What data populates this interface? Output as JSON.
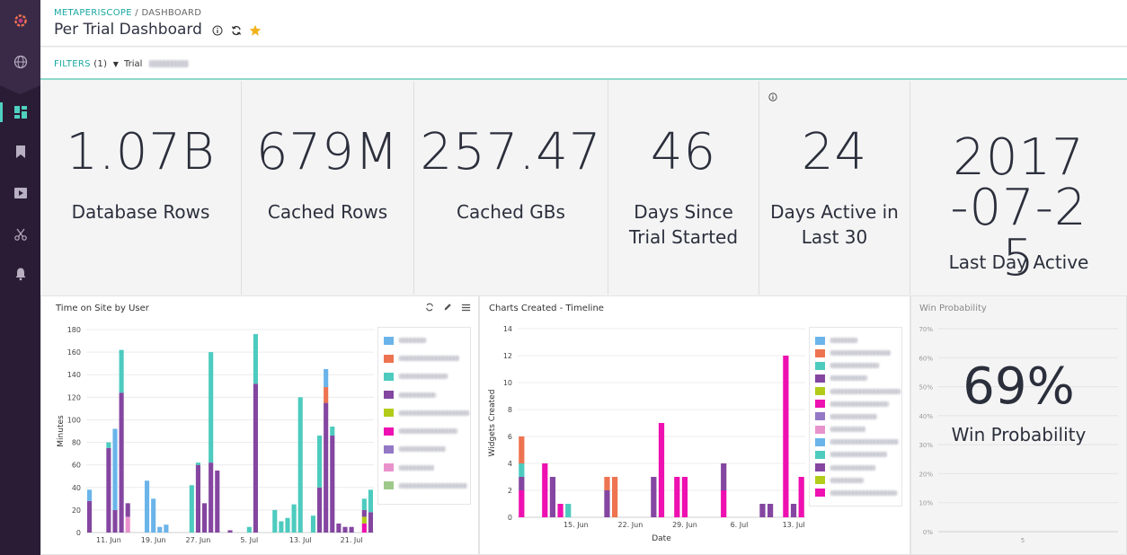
{
  "app": {
    "name": "Periscope Data",
    "logo": "periscope-logo"
  },
  "sidebar": {
    "items": [
      {
        "id": "globe",
        "icon": "globe-icon"
      },
      {
        "id": "dashboards",
        "icon": "dashboard-icon",
        "active": true
      },
      {
        "id": "bookmarks",
        "icon": "bookmark-icon"
      },
      {
        "id": "views",
        "icon": "view-icon"
      },
      {
        "id": "tools",
        "icon": "scissors-icon"
      },
      {
        "id": "alerts",
        "icon": "bell-icon"
      }
    ]
  },
  "header": {
    "breadcrumb_root": "METAPERISCOPE",
    "breadcrumb_sep": " / ",
    "breadcrumb_current": "DASHBOARD",
    "title": "Per Trial Dashboard",
    "icons": [
      "info-icon",
      "refresh-icon",
      "star-icon"
    ]
  },
  "filters": {
    "label": "FILTERS",
    "count": "(1)",
    "trial_label": "Trial"
  },
  "kpis": [
    {
      "value": "1.07B",
      "label": "Database Rows"
    },
    {
      "value": "679M",
      "label": "Cached Rows"
    },
    {
      "value": "257.47",
      "label": "Cached GBs"
    },
    {
      "value": "46",
      "label": "Days Since Trial Started"
    },
    {
      "value": "24",
      "label": "Days Active in Last 30"
    },
    {
      "value": "2017-07-25",
      "label": "Last Day Active"
    }
  ],
  "colors": {
    "blue": "#6ab4ea",
    "orange": "#ee7350",
    "teal": "#4dcbbf",
    "purple": "#8446a0",
    "lime": "#b3cc1a",
    "pink": "#ee10b0",
    "lavender": "#9378c6",
    "lightpink": "#e892cc",
    "sage": "#9fc98a",
    "accent": "#18a7a0"
  },
  "chart_data": [
    {
      "type": "bar",
      "title": "Time on Site by User",
      "ylabel": "Minutes",
      "ylim": [
        0,
        180
      ],
      "yticks": [
        0,
        20,
        40,
        60,
        80,
        100,
        120,
        140,
        160,
        180
      ],
      "xticks": [
        {
          "label": "11. Jun",
          "i": 3
        },
        {
          "label": "19. Jun",
          "i": 10
        },
        {
          "label": "27. Jun",
          "i": 17
        },
        {
          "label": "5. Jul",
          "i": 25
        },
        {
          "label": "13. Jul",
          "i": 33
        },
        {
          "label": "21. Jul",
          "i": 41
        }
      ],
      "bars": [
        [
          [
            "purple",
            28
          ],
          [
            "blue",
            10
          ]
        ],
        [],
        [],
        [
          [
            "purple",
            75
          ],
          [
            "teal",
            5
          ]
        ],
        [
          [
            "purple",
            20
          ],
          [
            "blue",
            72
          ]
        ],
        [
          [
            "purple",
            124
          ],
          [
            "teal",
            38
          ]
        ],
        [
          [
            "lightpink",
            14
          ],
          [
            "purple",
            12
          ]
        ],
        [],
        [],
        [
          [
            "blue",
            46
          ]
        ],
        [
          [
            "blue",
            30
          ]
        ],
        [
          [
            "blue",
            5
          ]
        ],
        [
          [
            "blue",
            7
          ]
        ],
        [],
        [],
        [],
        [
          [
            "teal",
            10
          ],
          [
            "teal",
            32
          ]
        ],
        [
          [
            "purple",
            60
          ],
          [
            "teal",
            2
          ]
        ],
        [
          [
            "purple",
            26
          ]
        ],
        [
          [
            "purple",
            62
          ],
          [
            "teal",
            98
          ]
        ],
        [
          [
            "purple",
            55
          ]
        ],
        [],
        [
          [
            "purple",
            2
          ]
        ],
        [],
        [],
        [
          [
            "teal",
            5
          ]
        ],
        [
          [
            "purple",
            132
          ],
          [
            "teal",
            44
          ]
        ],
        [],
        [],
        [
          [
            "teal",
            20
          ]
        ],
        [
          [
            "teal",
            10
          ]
        ],
        [
          [
            "teal",
            13
          ]
        ],
        [
          [
            "teal",
            25
          ]
        ],
        [
          [
            "teal",
            120
          ]
        ],
        [],
        [
          [
            "teal",
            15
          ]
        ],
        [
          [
            "purple",
            40
          ],
          [
            "teal",
            46
          ]
        ],
        [
          [
            "purple",
            115
          ],
          [
            "orange",
            14
          ],
          [
            "blue",
            16
          ]
        ],
        [
          [
            "purple",
            86
          ],
          [
            "teal",
            8
          ]
        ],
        [
          [
            "purple",
            8
          ]
        ],
        [
          [
            "purple",
            5
          ]
        ],
        [
          [
            "purple",
            5
          ]
        ],
        [],
        [
          [
            "pink",
            8
          ],
          [
            "lime",
            6
          ],
          [
            "purple",
            6
          ],
          [
            "teal",
            10
          ]
        ],
        [
          [
            "purple",
            18
          ],
          [
            "teal",
            20
          ]
        ]
      ],
      "legend": [
        "blue",
        "orange",
        "teal",
        "purple",
        "lime",
        "pink",
        "lavender",
        "lightpink",
        "sage"
      ]
    },
    {
      "type": "bar",
      "title": "Charts Created - Timeline",
      "xlabel": "Date",
      "ylabel": "Widgets Created",
      "ylim": [
        0,
        14
      ],
      "yticks": [
        0,
        2,
        4,
        6,
        8,
        10,
        12,
        14
      ],
      "xticks": [
        {
          "label": "15. Jun",
          "i": 7
        },
        {
          "label": "22. Jun",
          "i": 14
        },
        {
          "label": "29. Jun",
          "i": 21
        },
        {
          "label": "6. Jul",
          "i": 28
        },
        {
          "label": "13. Jul",
          "i": 35
        }
      ],
      "bars": [
        [
          [
            "pink",
            2
          ],
          [
            "purple",
            1
          ],
          [
            "teal",
            1
          ],
          [
            "orange",
            2
          ]
        ],
        [],
        [],
        [
          [
            "pink",
            4
          ]
        ],
        [
          [
            "purple",
            3
          ]
        ],
        [
          [
            "pink",
            1
          ]
        ],
        [
          [
            "teal",
            1
          ]
        ],
        [],
        [],
        [],
        [],
        [
          [
            "purple",
            2
          ],
          [
            "orange",
            1
          ]
        ],
        [
          [
            "orange",
            3
          ]
        ],
        [],
        [],
        [],
        [],
        [
          [
            "purple",
            3
          ]
        ],
        [
          [
            "pink",
            7
          ]
        ],
        [],
        [
          [
            "pink",
            3
          ]
        ],
        [
          [
            "pink",
            3
          ]
        ],
        [],
        [],
        [],
        [],
        [
          [
            "pink",
            2
          ],
          [
            "purple",
            2
          ]
        ],
        [],
        [],
        [],
        [],
        [
          [
            "purple",
            1
          ]
        ],
        [
          [
            "purple",
            1
          ]
        ],
        [],
        [
          [
            "pink",
            12
          ]
        ],
        [
          [
            "purple",
            1
          ]
        ],
        [
          [
            "pink",
            3
          ]
        ]
      ],
      "legend": [
        "blue",
        "orange",
        "teal",
        "purple",
        "lime",
        "pink",
        "lavender",
        "lightpink",
        "blue",
        "teal",
        "purple",
        "lime",
        "pink"
      ]
    },
    {
      "type": "gauge",
      "title": "Win Probability",
      "value": "69%",
      "label": "Win Probability",
      "yticks": [
        "0%",
        "10%",
        "20%",
        "30%",
        "40%",
        "50%",
        "60%",
        "70%"
      ],
      "xtick": "5"
    }
  ]
}
